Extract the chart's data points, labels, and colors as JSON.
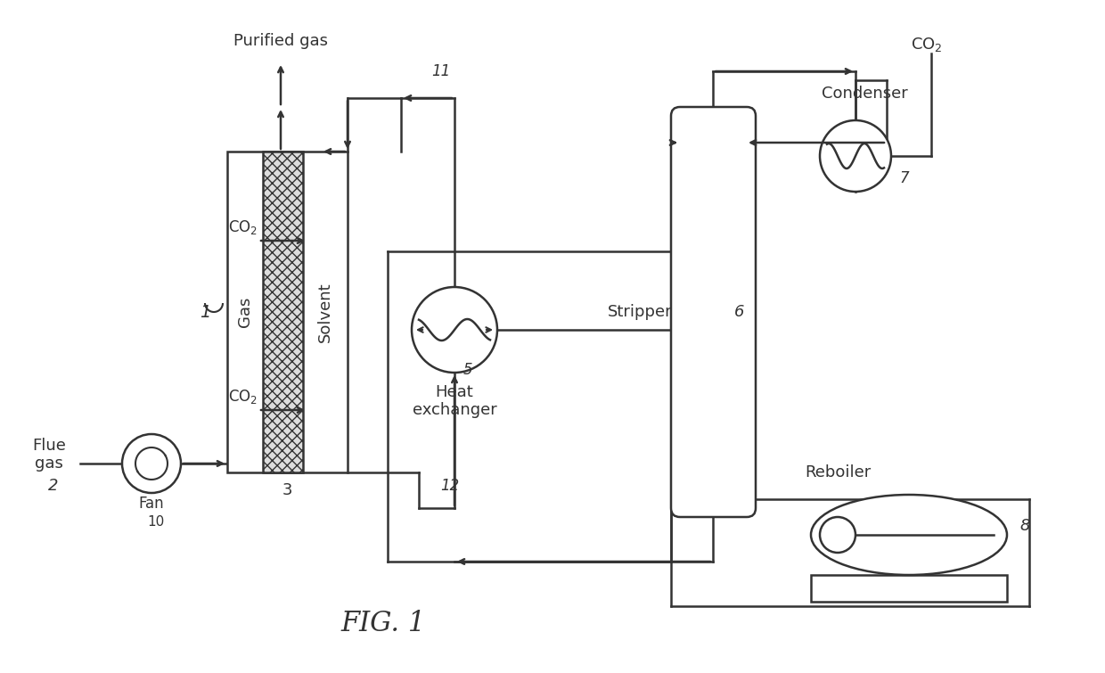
{
  "bg_color": "#ffffff",
  "line_color": "#333333",
  "fill_light": "#e8e8e8",
  "hatch_color": "#888888",
  "title": "FIG. 1",
  "labels": {
    "flue_gas": "Flue\ngas",
    "fan": "Fan",
    "purified_gas": "Purified gas",
    "co2_top": "CO₂",
    "co2_upper": "CO₂",
    "co2_lower": "CO₂",
    "gas": "Gas",
    "solvent": "Solvent",
    "heat_exchanger": "Heat\nexchanger",
    "stripper": "Stripper",
    "condenser": "Condenser",
    "reboiler": "Reboiler",
    "num2": "2",
    "num3": "3",
    "num5": "5",
    "num6": "6",
    "num7": "7",
    "num8": "8",
    "num10": "10",
    "num11": "11",
    "num12": "12",
    "num1": "1  ",
    "fig1": "FIG. 1"
  }
}
